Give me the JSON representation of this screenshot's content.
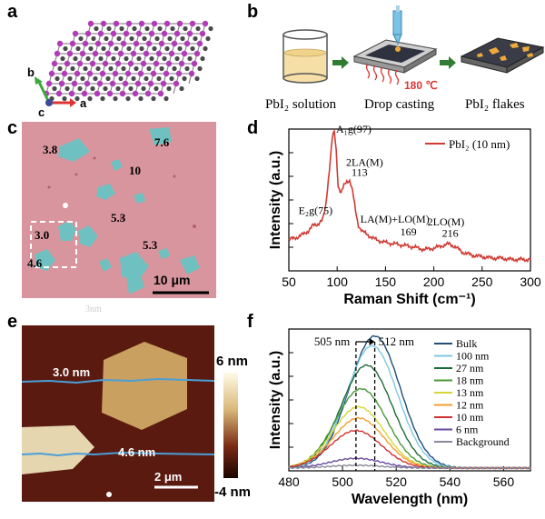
{
  "panels": {
    "a": {
      "label": "a",
      "axes": {
        "b": "b",
        "c": "c",
        "a": "a"
      }
    },
    "b": {
      "label": "b",
      "steps": [
        "PbI₂ solution",
        "Drop casting",
        "PbI₂ flakes"
      ],
      "temperature": "180 ℃"
    },
    "c": {
      "label": "c",
      "thickness_labels": [
        "3.8",
        "7.6",
        "10",
        "5.3",
        "3.0",
        "4.6",
        "5.3"
      ],
      "scalebar": "10 μm",
      "faint_text": "3nm"
    },
    "e": {
      "label": "e",
      "line_labels": [
        "3.0 nm",
        "4.6 nm"
      ],
      "scalebar": "2 μm",
      "colorbar": {
        "max": "6 nm",
        "min": "-4 nm"
      }
    },
    "d": {
      "label": "d"
    },
    "f": {
      "label": "f"
    }
  },
  "colors": {
    "substrate_pink": "#d9959d",
    "flake_teal": "#6fc0c0",
    "raman_red": "#d13b34",
    "afm_dark": "#5a1a10",
    "afm_light": "#d8b878"
  },
  "chart_data": [
    {
      "panel": "d",
      "type": "line",
      "xlabel": "Raman Shift (cm⁻¹)",
      "ylabel": "Intensity (a.u.)",
      "xlim": [
        50,
        300
      ],
      "xticks": [
        50,
        100,
        150,
        200,
        250,
        300
      ],
      "ylim": [
        0,
        1
      ],
      "y_tick_labels_shown": false,
      "series": [
        {
          "name": "PbI₂ (10 nm)",
          "color": "#d13b34",
          "x": [
            50,
            60,
            70,
            75,
            80,
            85,
            88,
            92,
            95,
            97,
            99,
            101,
            104,
            107,
            110,
            113,
            116,
            119,
            122,
            126,
            130,
            140,
            150,
            160,
            169,
            178,
            190,
            200,
            210,
            216,
            222,
            230,
            240,
            250,
            260,
            270,
            280,
            290,
            300
          ],
          "y": [
            0.22,
            0.24,
            0.28,
            0.32,
            0.33,
            0.36,
            0.45,
            0.72,
            0.94,
            0.98,
            0.85,
            0.6,
            0.55,
            0.6,
            0.63,
            0.64,
            0.56,
            0.42,
            0.32,
            0.28,
            0.26,
            0.22,
            0.2,
            0.19,
            0.18,
            0.17,
            0.15,
            0.16,
            0.18,
            0.19,
            0.17,
            0.13,
            0.11,
            0.1,
            0.09,
            0.09,
            0.08,
            0.08,
            0.08
          ]
        }
      ],
      "annotations": [
        {
          "text": "E₂g(75)",
          "x": 75
        },
        {
          "text": "A₁g(97)",
          "x": 97
        },
        {
          "text": "2LA(M)",
          "x": 113
        },
        {
          "text": "113",
          "x": 113
        },
        {
          "text": "LA(M)+LO(M)",
          "x": 169
        },
        {
          "text": "169",
          "x": 169
        },
        {
          "text": "2LO(M)",
          "x": 216
        },
        {
          "text": "216",
          "x": 216
        }
      ],
      "legend": "top-right"
    },
    {
      "panel": "f",
      "type": "line",
      "xlabel": "Wavelength (nm)",
      "ylabel": "Intensity (a.u.)",
      "xlim": [
        480,
        570
      ],
      "xticks": [
        480,
        500,
        520,
        540,
        560
      ],
      "ylim": [
        0,
        1
      ],
      "y_tick_labels_shown": false,
      "annotations": [
        {
          "text": "505 nm",
          "x": 505
        },
        {
          "text": "512 nm",
          "x": 512
        }
      ],
      "legend": "top-right",
      "series": [
        {
          "name": "Bulk",
          "color": "#1f4e79",
          "peak": 512,
          "amp": 0.95
        },
        {
          "name": "100 nm",
          "color": "#7ec8e3",
          "peak": 511,
          "amp": 0.88
        },
        {
          "name": "27 nm",
          "color": "#1e6b3a",
          "peak": 509,
          "amp": 0.74
        },
        {
          "name": "18 nm",
          "color": "#4a9a3a",
          "peak": 507,
          "amp": 0.57
        },
        {
          "name": "13 nm",
          "color": "#d6d63a",
          "peak": 506,
          "amp": 0.44
        },
        {
          "name": "12 nm",
          "color": "#f0a030",
          "peak": 506,
          "amp": 0.36
        },
        {
          "name": "10 nm",
          "color": "#d03030",
          "peak": 505,
          "amp": 0.27
        },
        {
          "name": "6 nm",
          "color": "#6a4aa0",
          "peak": 505,
          "amp": 0.07
        },
        {
          "name": "Background",
          "color": "#8a8a9a",
          "peak": 505,
          "amp": 0.02
        }
      ]
    }
  ]
}
